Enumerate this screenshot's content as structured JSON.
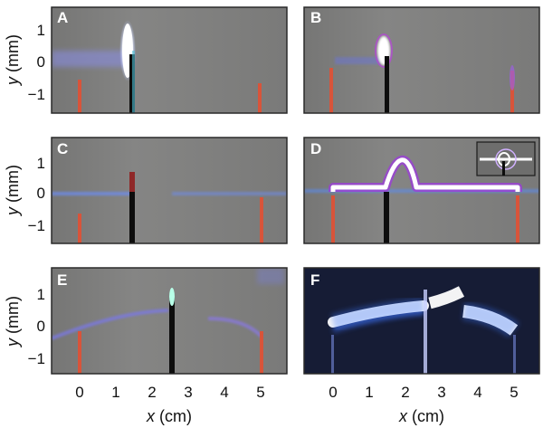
{
  "figure": {
    "panels": [
      {
        "id": "A",
        "dark": false
      },
      {
        "id": "B",
        "dark": false
      },
      {
        "id": "C",
        "dark": false
      },
      {
        "id": "D",
        "dark": false,
        "inset": true
      },
      {
        "id": "E",
        "dark": false
      },
      {
        "id": "F",
        "dark": true
      }
    ],
    "y_axis": {
      "label_var": "y",
      "label_unit": " (mm)",
      "range": [
        -1.6,
        1.8
      ],
      "ticks": [
        "1",
        "0",
        "−1"
      ]
    },
    "x_axis": {
      "label_var": "x",
      "label_unit": " (cm)",
      "range": [
        -0.6,
        5.85
      ],
      "ticks": [
        "0",
        "1",
        "2",
        "3",
        "4",
        "5"
      ]
    },
    "colors": {
      "panel_bg": "#7c7c7a",
      "panel_bg_dark": "#161c35",
      "plasma": "#e8ecff",
      "glow": "#8a6cf0",
      "electrode": "#0d0d0d",
      "electrode_tip": "#d8543a",
      "frame": "#2a2a2a"
    }
  }
}
